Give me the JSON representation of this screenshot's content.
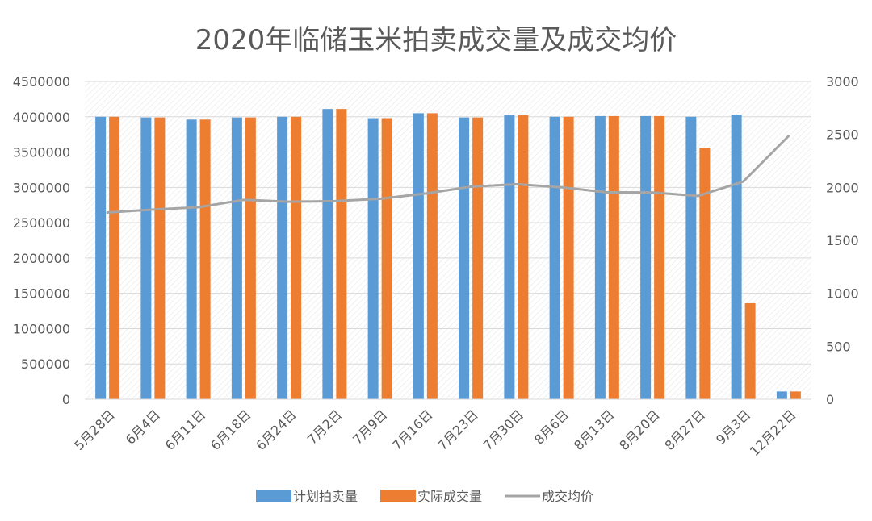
{
  "chart_data": {
    "type": "bar",
    "title": "2020年临储玉米拍卖成交量及成交均价",
    "categories": [
      "5月28日",
      "6月4日",
      "6月11日",
      "6月18日",
      "6月24日",
      "7月2日",
      "7月9日",
      "7月16日",
      "7月23日",
      "7月30日",
      "8月6日",
      "8月13日",
      "8月20日",
      "8月27日",
      "9月3日",
      "12月22日"
    ],
    "series": [
      {
        "name": "计划拍卖量",
        "axis": "left",
        "chart": "bar",
        "color": "#5B9BD5",
        "values": [
          4000000,
          3990000,
          3960000,
          3990000,
          4000000,
          4110000,
          3980000,
          4050000,
          3990000,
          4020000,
          4000000,
          4010000,
          4010000,
          4000000,
          4030000,
          110000
        ]
      },
      {
        "name": "实际成交量",
        "axis": "left",
        "chart": "bar",
        "color": "#ED7D31",
        "values": [
          4000000,
          3990000,
          3960000,
          3990000,
          4000000,
          4110000,
          3980000,
          4050000,
          3990000,
          4020000,
          4000000,
          4010000,
          4010000,
          3560000,
          1360000,
          110000
        ]
      },
      {
        "name": "成交均价",
        "axis": "right",
        "chart": "line",
        "color": "#A5A5A5",
        "values": [
          1763,
          1790,
          1812,
          1882,
          1865,
          1870,
          1892,
          1942,
          2006,
          2030,
          2000,
          1953,
          1952,
          1919,
          2055,
          2486
        ]
      }
    ],
    "y_left": {
      "min": 0,
      "max": 4500000,
      "step": 500000,
      "ticks": [
        "0",
        "500000",
        "1000000",
        "1500000",
        "2000000",
        "2500000",
        "3000000",
        "3500000",
        "4000000",
        "4500000"
      ]
    },
    "y_right": {
      "min": 0,
      "max": 3000,
      "step": 500,
      "ticks": [
        "0",
        "500",
        "1000",
        "1500",
        "2000",
        "2500",
        "3000"
      ]
    },
    "grid": true,
    "legend_position": "bottom"
  }
}
